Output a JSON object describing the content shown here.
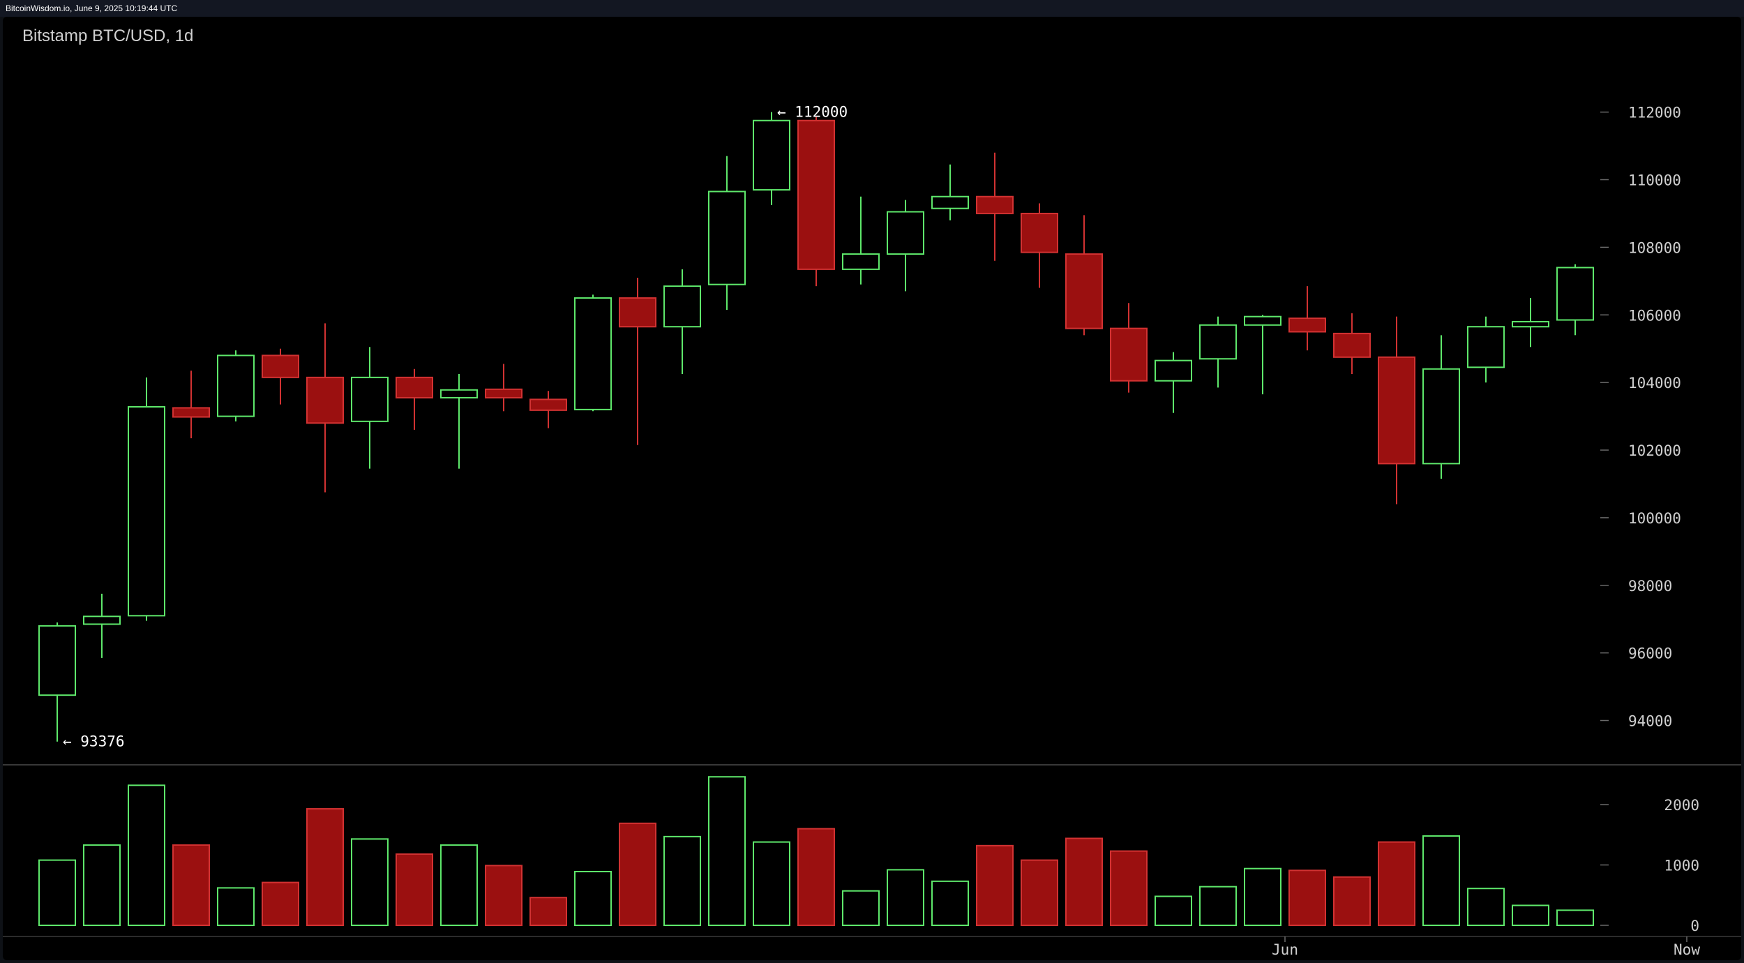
{
  "header": {
    "source_text": "BitcoinWisdom.io, June 9, 2025 10:19:44 UTC"
  },
  "colors": {
    "up": "#5ee86b",
    "down": "#9b1010",
    "down_border": "#d23232",
    "background": "#000000",
    "axis_text": "#cfcfcf"
  },
  "chart_data": {
    "type": "candlestick",
    "title": "Bitstamp BTC/USD, 1d",
    "price_ticks": [
      94000,
      96000,
      98000,
      100000,
      102000,
      104000,
      106000,
      108000,
      110000,
      112000
    ],
    "volume_ticks": [
      0,
      1000,
      2000
    ],
    "x_labels": [
      {
        "label": "Jun",
        "index": 27.5
      },
      {
        "label": "Now",
        "index": 36.5
      }
    ],
    "annotations": [
      {
        "text": "← 112000",
        "index": 16,
        "price": 112000
      },
      {
        "text": "← 93376",
        "index": 0,
        "price": 93376
      }
    ],
    "candles": [
      {
        "o": 94750,
        "h": 96900,
        "l": 93376,
        "c": 96800,
        "v": 1080
      },
      {
        "o": 96850,
        "h": 97750,
        "l": 95850,
        "c": 97080,
        "v": 1330
      },
      {
        "o": 97100,
        "h": 104150,
        "l": 96950,
        "c": 103280,
        "v": 2320
      },
      {
        "o": 103250,
        "h": 104350,
        "l": 102350,
        "c": 102980,
        "v": 1330
      },
      {
        "o": 103000,
        "h": 104950,
        "l": 102850,
        "c": 104800,
        "v": 620
      },
      {
        "o": 104800,
        "h": 105000,
        "l": 103350,
        "c": 104150,
        "v": 710
      },
      {
        "o": 104150,
        "h": 105750,
        "l": 100750,
        "c": 102800,
        "v": 1930
      },
      {
        "o": 102850,
        "h": 105050,
        "l": 101450,
        "c": 104150,
        "v": 1430
      },
      {
        "o": 104150,
        "h": 104400,
        "l": 102600,
        "c": 103550,
        "v": 1180
      },
      {
        "o": 103550,
        "h": 104250,
        "l": 101450,
        "c": 103780,
        "v": 1330
      },
      {
        "o": 103800,
        "h": 104550,
        "l": 103150,
        "c": 103550,
        "v": 990
      },
      {
        "o": 103500,
        "h": 103750,
        "l": 102650,
        "c": 103180,
        "v": 460
      },
      {
        "o": 103200,
        "h": 106600,
        "l": 103150,
        "c": 106500,
        "v": 890
      },
      {
        "o": 106500,
        "h": 107100,
        "l": 102150,
        "c": 105650,
        "v": 1690
      },
      {
        "o": 105650,
        "h": 107350,
        "l": 104250,
        "c": 106850,
        "v": 1470
      },
      {
        "o": 106900,
        "h": 110700,
        "l": 106150,
        "c": 109650,
        "v": 2460
      },
      {
        "o": 109700,
        "h": 112000,
        "l": 109250,
        "c": 111750,
        "v": 1380
      },
      {
        "o": 111750,
        "h": 111850,
        "l": 106850,
        "c": 107350,
        "v": 1600
      },
      {
        "o": 107350,
        "h": 109500,
        "l": 106900,
        "c": 107800,
        "v": 570
      },
      {
        "o": 107800,
        "h": 109400,
        "l": 106700,
        "c": 109050,
        "v": 920
      },
      {
        "o": 109150,
        "h": 110450,
        "l": 108800,
        "c": 109500,
        "v": 730
      },
      {
        "o": 109500,
        "h": 110800,
        "l": 107600,
        "c": 109000,
        "v": 1320
      },
      {
        "o": 109000,
        "h": 109300,
        "l": 106800,
        "c": 107850,
        "v": 1080
      },
      {
        "o": 107800,
        "h": 108950,
        "l": 105400,
        "c": 105600,
        "v": 1440
      },
      {
        "o": 105600,
        "h": 106350,
        "l": 103700,
        "c": 104050,
        "v": 1230
      },
      {
        "o": 104050,
        "h": 104900,
        "l": 103100,
        "c": 104650,
        "v": 480
      },
      {
        "o": 104700,
        "h": 105950,
        "l": 103850,
        "c": 105700,
        "v": 640
      },
      {
        "o": 105700,
        "h": 106000,
        "l": 103650,
        "c": 105950,
        "v": 940
      },
      {
        "o": 105900,
        "h": 106850,
        "l": 104950,
        "c": 105500,
        "v": 910
      },
      {
        "o": 105450,
        "h": 106050,
        "l": 104250,
        "c": 104750,
        "v": 800
      },
      {
        "o": 104750,
        "h": 105950,
        "l": 100400,
        "c": 101600,
        "v": 1380
      },
      {
        "o": 101600,
        "h": 105400,
        "l": 101150,
        "c": 104400,
        "v": 1480
      },
      {
        "o": 104450,
        "h": 105950,
        "l": 104000,
        "c": 105650,
        "v": 610
      },
      {
        "o": 105650,
        "h": 106500,
        "l": 105050,
        "c": 105800,
        "v": 330
      },
      {
        "o": 105850,
        "h": 107500,
        "l": 105400,
        "c": 107400,
        "v": 250
      }
    ]
  }
}
